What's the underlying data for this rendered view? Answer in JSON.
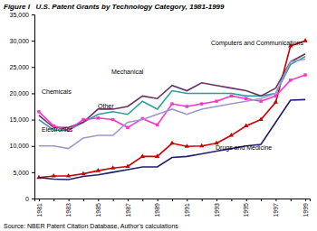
{
  "chart_data": {
    "type": "line",
    "title": "Figure I   U.S. Patent Grants by Technology Category, 1981-1999",
    "source": "Source: NBER Patent Citation Database, Author's calculations",
    "categories": [
      "1981",
      null,
      "1983",
      null,
      "1985",
      null,
      "1987",
      null,
      "1989",
      null,
      "1991",
      null,
      "1993",
      null,
      "1995",
      null,
      "1997",
      null,
      "1999"
    ],
    "series": [
      {
        "name": "Computers and Communications",
        "color": "#cc0000",
        "marker": "triangle",
        "values": [
          4000,
          4300,
          4300,
          4700,
          5300,
          5800,
          6100,
          8000,
          8000,
          10500,
          9900,
          10000,
          10500,
          12000,
          13800,
          15000,
          18300,
          29000,
          30000
        ]
      },
      {
        "name": "Mechanical",
        "color": "#2a9d9d",
        "values": [
          15000,
          13000,
          13000,
          14500,
          16000,
          16500,
          16000,
          18500,
          17000,
          20500,
          20000,
          20000,
          20000,
          20000,
          19500,
          19500,
          20000,
          25500,
          27000
        ]
      },
      {
        "name": "Chemicals",
        "color": "#663366",
        "values": [
          15800,
          13500,
          13500,
          14500,
          17000,
          17000,
          17500,
          19500,
          19000,
          21500,
          20500,
          22000,
          21500,
          21000,
          20500,
          19500,
          21000,
          26000,
          27500
        ]
      },
      {
        "name": "Other",
        "color": "#ff33cc",
        "marker": "square",
        "values": [
          16500,
          13800,
          13000,
          15000,
          15300,
          15000,
          13500,
          15200,
          14000,
          18000,
          17500,
          18000,
          18500,
          19500,
          19000,
          18500,
          19500,
          22500,
          23500
        ]
      },
      {
        "name": "Electronics",
        "color": "#9999cc",
        "values": [
          10000,
          10000,
          9500,
          11500,
          12000,
          12000,
          14500,
          15000,
          16000,
          17000,
          16000,
          17000,
          17500,
          18000,
          18500,
          19000,
          20000,
          26000,
          26500
        ]
      },
      {
        "name": "Drugs and Medicine",
        "color": "#1f1f6b",
        "values": [
          4000,
          3700,
          3600,
          4200,
          4500,
          5000,
          5500,
          6000,
          6000,
          7800,
          8000,
          8500,
          9000,
          9500,
          10000,
          10300,
          14500,
          18700,
          18800
        ]
      }
    ],
    "ylim": [
      0,
      35000
    ],
    "yticks": [
      0,
      {
        "value": 5000,
        "label": "5,000"
      },
      {
        "value": 10000,
        "label": "10,000"
      },
      {
        "value": 15000,
        "label": "15,000"
      },
      {
        "value": 20000,
        "label": "20,000"
      },
      {
        "value": 25000,
        "label": "25,000"
      },
      {
        "value": 30000,
        "label": "30,000"
      },
      {
        "value": 35000,
        "label": "35,000"
      }
    ],
    "grid": false
  }
}
